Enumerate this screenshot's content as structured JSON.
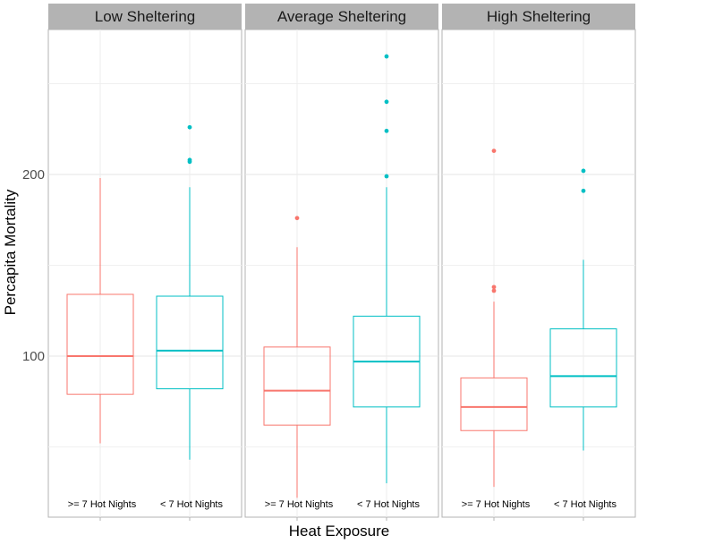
{
  "chart_data": {
    "type": "box",
    "xlabel": "Heat Exposure",
    "ylabel": "Percapita Mortality",
    "y_ticks": [
      100,
      200
    ],
    "ylim": [
      12,
      272
    ],
    "categories": [
      ">= 7 Hot Nights",
      "< 7 Hot Nights"
    ],
    "colors": {
      ">= 7 Hot Nights": "#f8766d",
      "< 7 Hot Nights": "#00bfc4"
    },
    "grid": true,
    "legend": "none",
    "panels": [
      {
        "title": "Low Sheltering",
        "boxes": [
          {
            "category": ">= 7 Hot Nights",
            "min": 52,
            "q1": 79,
            "median": 100,
            "q3": 134,
            "max": 198,
            "outliers": []
          },
          {
            "category": "< 7 Hot Nights",
            "min": 43,
            "q1": 82,
            "median": 103,
            "q3": 133,
            "max": 193,
            "outliers": [
              207,
              208,
              226
            ]
          }
        ]
      },
      {
        "title": "Average Sheltering",
        "boxes": [
          {
            "category": ">= 7 Hot Nights",
            "min": 22,
            "q1": 62,
            "median": 81,
            "q3": 105,
            "max": 160,
            "outliers": [
              176
            ]
          },
          {
            "category": "< 7 Hot Nights",
            "min": 30,
            "q1": 72,
            "median": 97,
            "q3": 122,
            "max": 193,
            "outliers": [
              199,
              224,
              240,
              265
            ]
          }
        ]
      },
      {
        "title": "High Sheltering",
        "boxes": [
          {
            "category": ">= 7 Hot Nights",
            "min": 28,
            "q1": 59,
            "median": 72,
            "q3": 88,
            "max": 130,
            "outliers": [
              136,
              138,
              213
            ]
          }
        ],
        "extra_boxes": [
          {
            "category": "< 7 Hot Nights",
            "min": 48,
            "q1": 72,
            "median": 89,
            "q3": 115,
            "max": 153,
            "outliers": [
              191,
              202
            ]
          }
        ]
      }
    ]
  }
}
